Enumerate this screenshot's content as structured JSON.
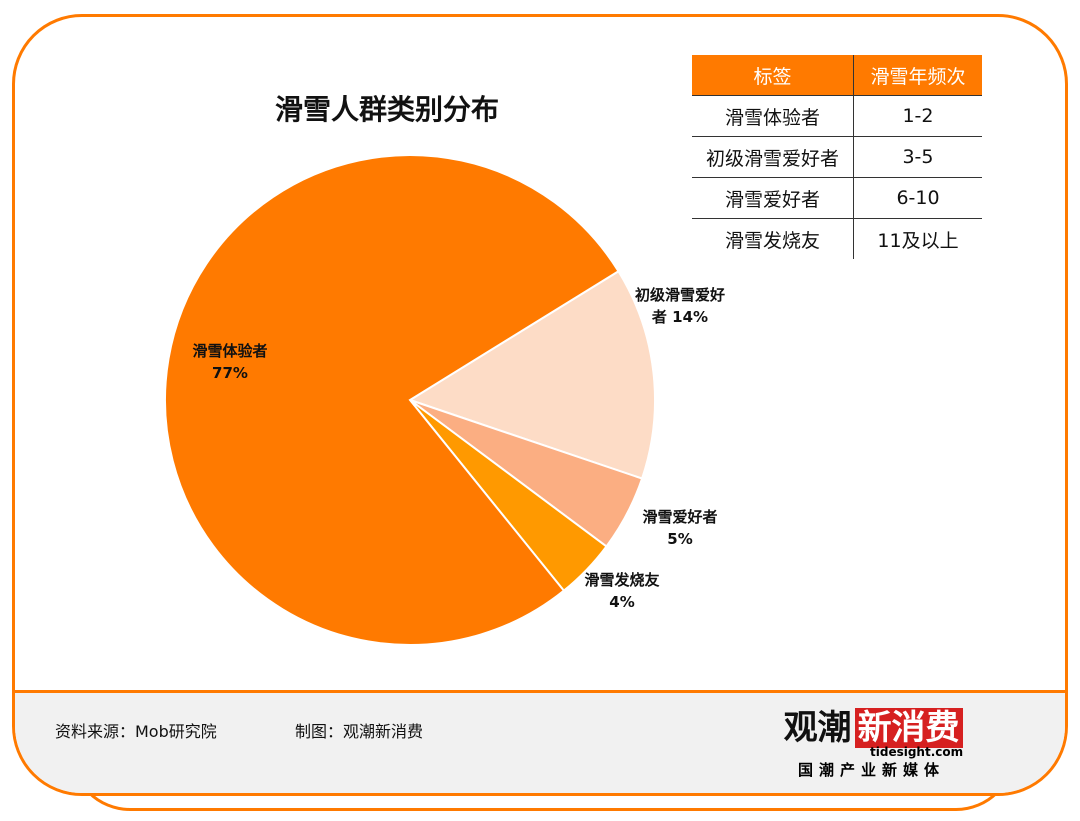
{
  "chart_data": {
    "type": "pie",
    "title": "滑雪人群类别分布",
    "slices": [
      {
        "label": "初级滑雪爱好者",
        "value": 14,
        "value_label": "14%",
        "color": "#fddcc6"
      },
      {
        "label": "滑雪爱好者",
        "value": 5,
        "value_label": "5%",
        "color": "#fbae82"
      },
      {
        "label": "滑雪发烧友",
        "value": 4,
        "value_label": "4%",
        "color": "#ff9900"
      },
      {
        "label": "滑雪体验者",
        "value": 77,
        "value_label": "77%",
        "color": "#ff7a00"
      }
    ]
  },
  "table": {
    "headers": [
      "标签",
      "滑雪年频次"
    ],
    "rows": [
      [
        "滑雪体验者",
        "1-2"
      ],
      [
        "初级滑雪爱好者",
        "3-5"
      ],
      [
        "滑雪爱好者",
        "6-10"
      ],
      [
        "滑雪发烧友",
        "11及以上"
      ]
    ]
  },
  "footer": {
    "source": "资料来源：Mob研究院",
    "made_by": "制图：观潮新消费"
  },
  "logo": {
    "name_plain": "观潮",
    "name_highlight": "新消费",
    "url": "tidesight.com",
    "slogan": "国潮产业新媒体"
  }
}
